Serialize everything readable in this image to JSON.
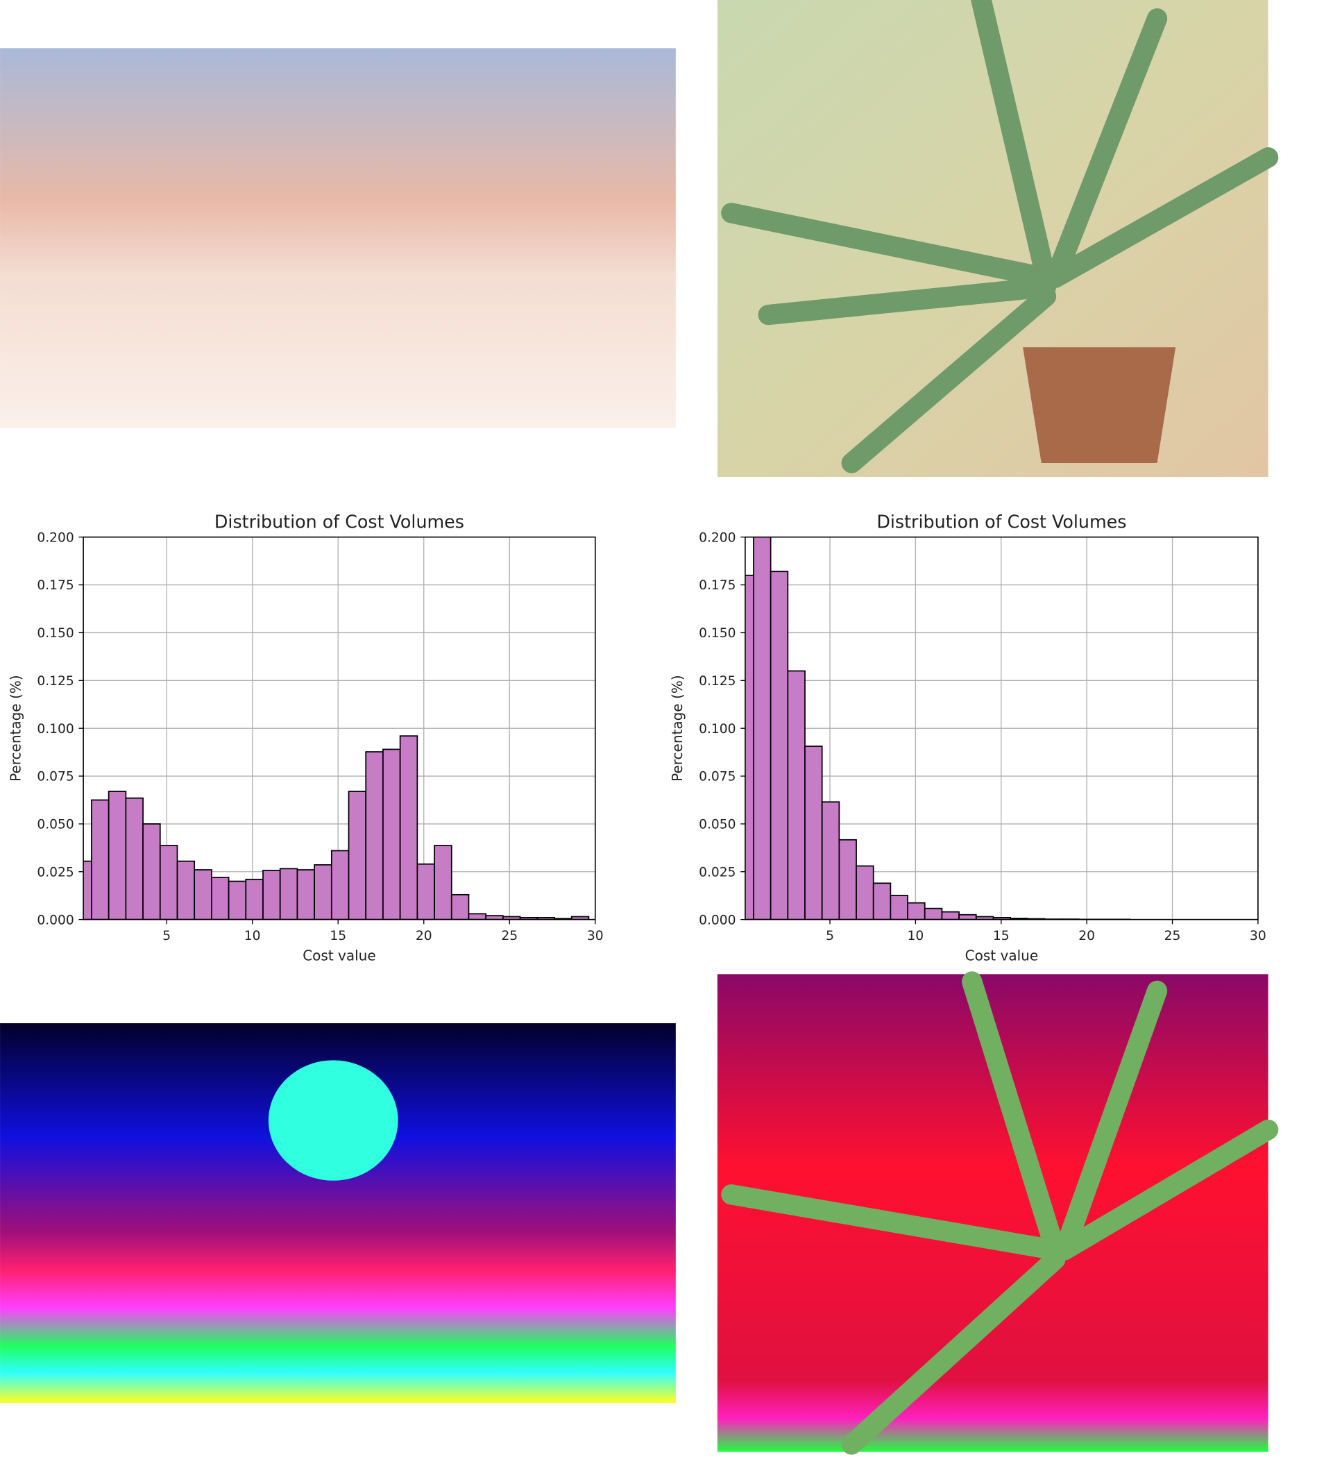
{
  "chart_data": [
    {
      "type": "histogram",
      "title": "Distribution of Cost Volumes",
      "x_label": "Cost value",
      "y_label": "Percentage (%)",
      "bins": [
        -0.38,
        0.62,
        1.62,
        2.62,
        3.62,
        4.62,
        5.62,
        6.62,
        7.62,
        8.62,
        9.62,
        10.62,
        11.62,
        12.62,
        13.62,
        14.62,
        15.62,
        16.62,
        17.62,
        18.62,
        19.62,
        20.62,
        21.62,
        22.62,
        23.62,
        24.62,
        25.62,
        26.62,
        27.62,
        28.62,
        29.62
      ],
      "values": [
        0.0305,
        0.0625,
        0.067,
        0.0635,
        0.05,
        0.0387,
        0.0305,
        0.026,
        0.022,
        0.02,
        0.021,
        0.0257,
        0.0266,
        0.026,
        0.0286,
        0.036,
        0.067,
        0.0877,
        0.089,
        0.096,
        0.029,
        0.0387,
        0.013,
        0.003,
        0.002,
        0.0015,
        0.001,
        0.001,
        0.0005,
        0.0015
      ],
      "color": "#c77cc6",
      "edgecolor": "#000000",
      "xlim": [
        0.14,
        30
      ],
      "xticks": [
        5,
        10,
        15,
        20,
        25,
        30
      ],
      "ylim": [
        0,
        0.2
      ],
      "yticks": [
        {
          "value": 0,
          "label": "0.000"
        },
        {
          "value": 0.025,
          "label": "0.025"
        },
        {
          "value": 0.05,
          "label": "0.050"
        },
        {
          "value": 0.075,
          "label": "0.075"
        },
        {
          "value": 0.1,
          "label": "0.100"
        },
        {
          "value": 0.125,
          "label": "0.125"
        },
        {
          "value": 0.15,
          "label": "0.150"
        },
        {
          "value": 0.175,
          "label": "0.175"
        },
        {
          "value": 0.2,
          "label": "0.200"
        }
      ],
      "grid": true
    },
    {
      "type": "histogram",
      "title": "Distribution of Cost Volumes",
      "x_label": "Cost value",
      "y_label": "Percentage (%)",
      "bins": [
        -0.46,
        0.54,
        1.54,
        2.54,
        3.54,
        4.54,
        5.54,
        6.54,
        7.54,
        8.54,
        9.54,
        10.54,
        11.54,
        12.54,
        13.54,
        14.54,
        15.54,
        16.54,
        17.54,
        18.54,
        19.54,
        20.54,
        21.54,
        22.54,
        23.54,
        24.54,
        25.54,
        26.54,
        27.54,
        28.54,
        29.54
      ],
      "values": [
        0.18,
        0.205,
        0.182,
        0.13,
        0.0906,
        0.0615,
        0.0417,
        0.028,
        0.019,
        0.0126,
        0.0087,
        0.0058,
        0.004,
        0.0025,
        0.0015,
        0.001,
        0.0006,
        0.0004,
        0.0002,
        0.0002,
        0.0001,
        0.0001,
        0.0001,
        0,
        0,
        0,
        0,
        0,
        0,
        0
      ],
      "color": "#c77cc6",
      "edgecolor": "#000000",
      "xlim": [
        0.05,
        30
      ],
      "xticks": [
        5,
        10,
        15,
        20,
        25,
        30
      ],
      "ylim": [
        0,
        0.2
      ],
      "yticks": [
        {
          "value": 0,
          "label": "0.000"
        },
        {
          "value": 0.025,
          "label": "0.025"
        },
        {
          "value": 0.05,
          "label": "0.050"
        },
        {
          "value": 0.075,
          "label": "0.075"
        },
        {
          "value": 0.1,
          "label": "0.100"
        },
        {
          "value": 0.125,
          "label": "0.125"
        },
        {
          "value": 0.15,
          "label": "0.150"
        },
        {
          "value": 0.175,
          "label": "0.175"
        },
        {
          "value": 0.2,
          "label": "0.200"
        }
      ],
      "grid": true
    }
  ]
}
